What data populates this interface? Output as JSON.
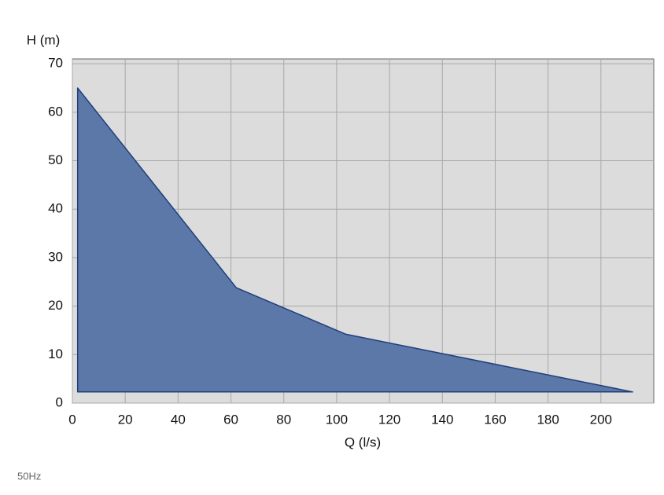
{
  "chart_data": {
    "type": "area",
    "x": [
      2,
      2,
      62,
      103.5,
      212
    ],
    "values": [
      2.3,
      65,
      23.8,
      14.2,
      2.3
    ],
    "color": "#5b78a8",
    "line_color": "#1f3f7a",
    "xlabel": "Q (l/s)",
    "ylabel": "H (m)",
    "footnote": "50Hz",
    "xlim": [
      0,
      220
    ],
    "ylim": [
      0,
      71
    ],
    "xticks": [
      0,
      20,
      40,
      60,
      80,
      100,
      120,
      140,
      160,
      180,
      200
    ],
    "yticks": [
      0,
      10,
      20,
      30,
      40,
      50,
      60,
      70
    ],
    "grid": true
  }
}
